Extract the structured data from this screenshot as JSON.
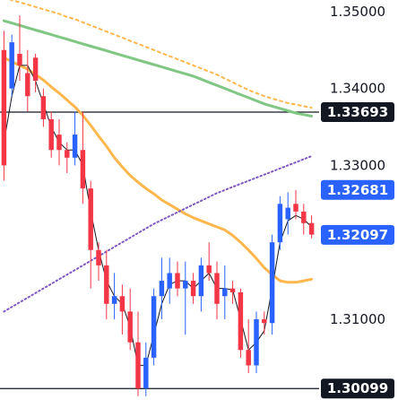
{
  "chart_data": {
    "type": "candlestick",
    "ylim": [
      1.2995,
      1.3515
    ],
    "y_ticks": [
      {
        "value": 1.35,
        "label": "1.35000"
      },
      {
        "value": 1.34,
        "label": "1.34000"
      },
      {
        "value": 1.33,
        "label": "1.33000"
      },
      {
        "value": 1.31,
        "label": "1.31000"
      }
    ],
    "price_tags": [
      {
        "value": 1.33693,
        "label": "1.33693",
        "color": "#131722",
        "role": "horizontal-line-upper"
      },
      {
        "value": 1.32681,
        "label": "1.32681",
        "color": "#2962ff",
        "role": "current-high"
      },
      {
        "value": 1.32097,
        "label": "1.32097",
        "color": "#2962ff",
        "role": "current-price"
      },
      {
        "value": 1.30099,
        "label": "1.30099",
        "color": "#131722",
        "role": "horizontal-line-lower"
      }
    ],
    "horizontal_lines": [
      1.33693,
      1.30099
    ],
    "candles": [
      {
        "o": 1.345,
        "h": 1.3475,
        "l": 1.328,
        "c": 1.33
      },
      {
        "o": 1.34,
        "h": 1.347,
        "l": 1.339,
        "c": 1.346
      },
      {
        "o": 1.3445,
        "h": 1.3495,
        "l": 1.341,
        "c": 1.343
      },
      {
        "o": 1.342,
        "h": 1.345,
        "l": 1.337,
        "c": 1.339
      },
      {
        "o": 1.344,
        "h": 1.3445,
        "l": 1.3395,
        "c": 1.341
      },
      {
        "o": 1.339,
        "h": 1.34,
        "l": 1.335,
        "c": 1.336
      },
      {
        "o": 1.336,
        "h": 1.337,
        "l": 1.331,
        "c": 1.332
      },
      {
        "o": 1.334,
        "h": 1.336,
        "l": 1.33,
        "c": 1.332
      },
      {
        "o": 1.332,
        "h": 1.333,
        "l": 1.329,
        "c": 1.331
      },
      {
        "o": 1.331,
        "h": 1.337,
        "l": 1.33,
        "c": 1.334
      },
      {
        "o": 1.332,
        "h": 1.337,
        "l": 1.325,
        "c": 1.327
      },
      {
        "o": 1.327,
        "h": 1.328,
        "l": 1.314,
        "c": 1.319
      },
      {
        "o": 1.319,
        "h": 1.32,
        "l": 1.315,
        "c": 1.317
      },
      {
        "o": 1.317,
        "h": 1.319,
        "l": 1.31,
        "c": 1.312
      },
      {
        "o": 1.312,
        "h": 1.316,
        "l": 1.31,
        "c": 1.313
      },
      {
        "o": 1.313,
        "h": 1.3145,
        "l": 1.308,
        "c": 1.311
      },
      {
        "o": 1.311,
        "h": 1.314,
        "l": 1.306,
        "c": 1.307
      },
      {
        "o": 1.307,
        "h": 1.311,
        "l": 1.3,
        "c": 1.301
      },
      {
        "o": 1.301,
        "h": 1.307,
        "l": 1.3,
        "c": 1.305
      },
      {
        "o": 1.305,
        "h": 1.314,
        "l": 1.304,
        "c": 1.313
      },
      {
        "o": 1.313,
        "h": 1.318,
        "l": 1.31,
        "c": 1.315
      },
      {
        "o": 1.314,
        "h": 1.318,
        "l": 1.312,
        "c": 1.316
      },
      {
        "o": 1.316,
        "h": 1.3175,
        "l": 1.313,
        "c": 1.314
      },
      {
        "o": 1.314,
        "h": 1.3175,
        "l": 1.308,
        "c": 1.315
      },
      {
        "o": 1.315,
        "h": 1.316,
        "l": 1.312,
        "c": 1.313
      },
      {
        "o": 1.313,
        "h": 1.318,
        "l": 1.311,
        "c": 1.317
      },
      {
        "o": 1.317,
        "h": 1.32,
        "l": 1.315,
        "c": 1.316
      },
      {
        "o": 1.316,
        "h": 1.3175,
        "l": 1.31,
        "c": 1.312
      },
      {
        "o": 1.313,
        "h": 1.317,
        "l": 1.31,
        "c": 1.314
      },
      {
        "o": 1.314,
        "h": 1.315,
        "l": 1.312,
        "c": 1.3135
      },
      {
        "o": 1.3135,
        "h": 1.314,
        "l": 1.305,
        "c": 1.306
      },
      {
        "o": 1.306,
        "h": 1.31,
        "l": 1.303,
        "c": 1.304
      },
      {
        "o": 1.304,
        "h": 1.311,
        "l": 1.303,
        "c": 1.31
      },
      {
        "o": 1.31,
        "h": 1.311,
        "l": 1.308,
        "c": 1.3095
      },
      {
        "o": 1.3095,
        "h": 1.321,
        "l": 1.308,
        "c": 1.32
      },
      {
        "o": 1.32,
        "h": 1.326,
        "l": 1.319,
        "c": 1.325
      },
      {
        "o": 1.323,
        "h": 1.3265,
        "l": 1.321,
        "c": 1.3245
      },
      {
        "o": 1.325,
        "h": 1.3268,
        "l": 1.323,
        "c": 1.324
      },
      {
        "o": 1.324,
        "h": 1.325,
        "l": 1.321,
        "c": 1.3225
      },
      {
        "o": 1.3225,
        "h": 1.3235,
        "l": 1.3205,
        "c": 1.321
      }
    ],
    "series": [
      {
        "name": "",
        "color": "#ffb74d",
        "style": "dotted",
        "values": [
          1.3518,
          1.3515,
          1.3512,
          1.3509,
          1.3506,
          1.3503,
          1.35,
          1.3497,
          1.3493,
          1.349,
          1.3486,
          1.3482,
          1.3478,
          1.3474,
          1.347,
          1.3466,
          1.3462,
          1.3458,
          1.3454,
          1.345,
          1.3446,
          1.3442,
          1.3438,
          1.3434,
          1.343,
          1.3426,
          1.3422,
          1.3418,
          1.3413,
          1.3408,
          1.3403,
          1.3398,
          1.3394,
          1.339,
          1.3387,
          1.3384,
          1.3381,
          1.3379,
          1.3377,
          1.3375
        ]
      },
      {
        "name": "",
        "color": "#81c784",
        "style": "solid",
        "values": [
          1.3488,
          1.3485,
          1.3482,
          1.3479,
          1.3476,
          1.3473,
          1.347,
          1.3467,
          1.3464,
          1.3461,
          1.3458,
          1.3455,
          1.3452,
          1.3449,
          1.3446,
          1.3443,
          1.344,
          1.3437,
          1.3434,
          1.3431,
          1.3428,
          1.3425,
          1.3422,
          1.3419,
          1.3416,
          1.3412,
          1.3408,
          1.3404,
          1.34,
          1.3396,
          1.3392,
          1.3388,
          1.3384,
          1.338,
          1.3377,
          1.3374,
          1.3371,
          1.3368,
          1.3366,
          1.3364
        ]
      },
      {
        "name": "",
        "color": "#ffb74d",
        "style": "solid",
        "values": [
          1.344,
          1.3435,
          1.343,
          1.3425,
          1.3418,
          1.3411,
          1.3402,
          1.3394,
          1.3385,
          1.3376,
          1.3365,
          1.3352,
          1.3338,
          1.3325,
          1.331,
          1.3298,
          1.3287,
          1.3278,
          1.327,
          1.3263,
          1.3255,
          1.3249,
          1.3243,
          1.3237,
          1.3232,
          1.3228,
          1.3224,
          1.322,
          1.3216,
          1.3209,
          1.32,
          1.319,
          1.3179,
          1.3167,
          1.3158,
          1.315,
          1.3148,
          1.3148,
          1.315,
          1.3152
        ]
      },
      {
        "name": "",
        "color": "#7e57c2",
        "style": "dotted",
        "values": [
          1.311,
          1.3116,
          1.3122,
          1.3128,
          1.3134,
          1.314,
          1.3146,
          1.3152,
          1.3158,
          1.3164,
          1.317,
          1.3176,
          1.3182,
          1.3188,
          1.3194,
          1.32,
          1.3206,
          1.3212,
          1.3218,
          1.3224,
          1.3229,
          1.3234,
          1.3239,
          1.3244,
          1.3249,
          1.3254,
          1.3259,
          1.3264,
          1.3268,
          1.3272,
          1.3276,
          1.328,
          1.3284,
          1.3288,
          1.3292,
          1.3296,
          1.33,
          1.3304,
          1.3308,
          1.3312
        ]
      },
      {
        "name": "",
        "color": "#131722",
        "style": "thin",
        "values": [
          1.333,
          1.339,
          1.343,
          1.343,
          1.341,
          1.338,
          1.335,
          1.333,
          1.332,
          1.332,
          1.33,
          1.324,
          1.319,
          1.315,
          1.313,
          1.312,
          1.309,
          1.304,
          1.304,
          1.308,
          1.312,
          1.3145,
          1.315,
          1.315,
          1.314,
          1.315,
          1.316,
          1.314,
          1.314,
          1.3138,
          1.31,
          1.306,
          1.307,
          1.3085,
          1.314,
          1.32,
          1.3228,
          1.3235,
          1.323,
          1.322
        ]
      }
    ],
    "bull_color": "#2962ff",
    "bear_color": "#f23645"
  }
}
